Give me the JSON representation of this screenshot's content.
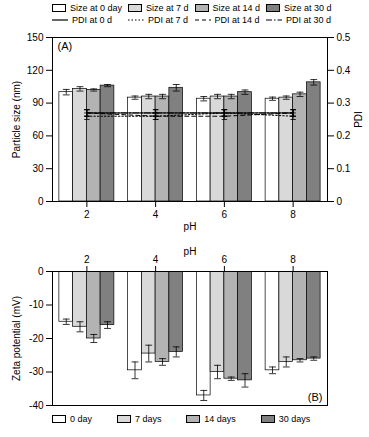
{
  "chart_data": [
    {
      "type": "bar",
      "title": "(A)",
      "x_label": "pH",
      "y_label": "Particle size (nm)",
      "y2_label": "PDI",
      "categories": [
        "2",
        "4",
        "6",
        "8"
      ],
      "ylim": [
        0,
        150
      ],
      "yticks": [
        0,
        30,
        60,
        90,
        120,
        150
      ],
      "y2lim": [
        0,
        0.5
      ],
      "y2ticks": [
        0,
        0.1,
        0.2,
        0.3,
        0.4,
        0.5
      ],
      "grid": false,
      "legend": "top",
      "series": [
        {
          "name": "Size at 0 day",
          "type": "bar",
          "color": "#ffffff",
          "values": [
            100,
            95,
            94,
            94
          ],
          "errors": [
            2.5,
            1.5,
            2,
            1.5
          ]
        },
        {
          "name": "Size at 7 d",
          "type": "bar",
          "color": "#d9d9d9",
          "values": [
            103,
            96,
            96,
            95
          ],
          "errors": [
            2,
            2,
            2,
            1.5
          ]
        },
        {
          "name": "Size at 14 d",
          "type": "bar",
          "color": "#b3b3b3",
          "values": [
            102,
            96,
            96,
            98
          ],
          "errors": [
            1,
            2,
            2,
            2
          ]
        },
        {
          "name": "Size at 30 d",
          "type": "bar",
          "color": "#808080",
          "values": [
            106,
            104,
            100,
            109
          ],
          "errors": [
            1,
            3,
            2,
            2.5
          ]
        },
        {
          "name": "PDI at 0 d",
          "type": "line",
          "axis": "y2",
          "color": "#000000",
          "line_style": "solid",
          "values": [
            0.27,
            0.27,
            0.27,
            0.27
          ],
          "errors": [
            0.01,
            0.01,
            0.01,
            0.01
          ]
        },
        {
          "name": "PDI at 7 d",
          "type": "line",
          "axis": "y2",
          "color": "#000000",
          "line_style": "dotted",
          "values": [
            0.26,
            0.26,
            0.27,
            0.26
          ],
          "errors": [
            0.01,
            0.01,
            0.01,
            0.01
          ]
        },
        {
          "name": "PDI at 14 d",
          "type": "line",
          "axis": "y2",
          "color": "#000000",
          "line_style": "dashed",
          "values": [
            0.27,
            0.26,
            0.26,
            0.27
          ],
          "errors": [
            0.01,
            0.01,
            0.01,
            0.01
          ]
        },
        {
          "name": "PDI at 30 d",
          "type": "line",
          "axis": "y2",
          "color": "#000000",
          "line_style": "dashdot",
          "values": [
            0.27,
            0.27,
            0.27,
            0.27
          ],
          "errors": [
            0.01,
            0.01,
            0.01,
            0.01
          ]
        }
      ]
    },
    {
      "type": "bar",
      "title": "(B)",
      "x_label": "pH",
      "y_label": "Zeta potential (mV)",
      "categories": [
        "2",
        "4",
        "6",
        "8"
      ],
      "ylim": [
        -40,
        0
      ],
      "yticks": [
        0,
        -10,
        -20,
        -30,
        -40
      ],
      "grid": false,
      "legend": "bottom",
      "series": [
        {
          "name": "0 day",
          "color": "#ffffff",
          "values": [
            -15,
            -29.5,
            -37,
            -29.5
          ],
          "errors": [
            0.8,
            2.5,
            1.5,
            1
          ]
        },
        {
          "name": "7 days",
          "color": "#d9d9d9",
          "values": [
            -16.5,
            -24.5,
            -30,
            -27
          ],
          "errors": [
            1.5,
            2.5,
            2,
            1.5
          ]
        },
        {
          "name": "14 days",
          "color": "#b3b3b3",
          "values": [
            -20,
            -27,
            -32,
            -26.5
          ],
          "errors": [
            1.2,
            1,
            0.5,
            0.5
          ]
        },
        {
          "name": "30 days",
          "color": "#808080",
          "values": [
            -16,
            -24,
            -32.5,
            -26
          ],
          "errors": [
            1,
            1.5,
            2,
            0.5
          ]
        }
      ]
    }
  ]
}
